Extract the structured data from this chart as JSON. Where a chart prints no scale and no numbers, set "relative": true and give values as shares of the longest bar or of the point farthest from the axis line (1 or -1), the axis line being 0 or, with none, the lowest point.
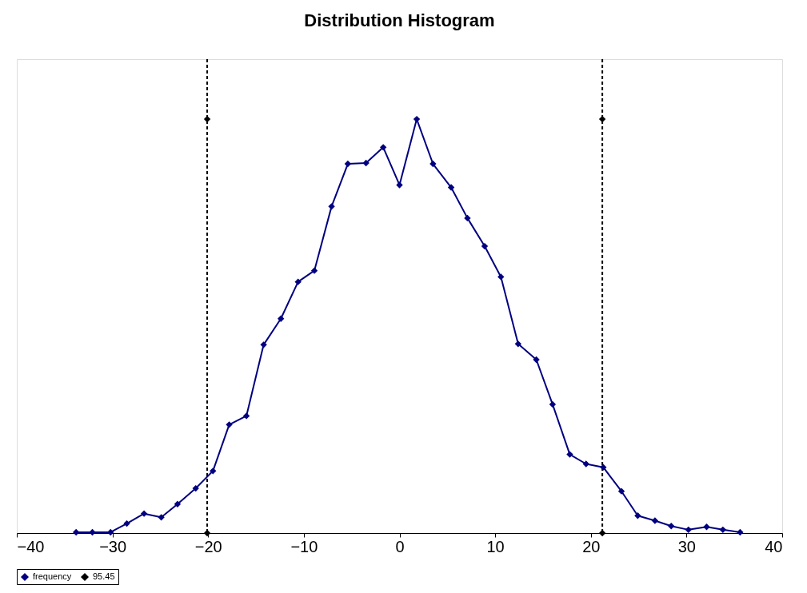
{
  "chart_data": {
    "type": "line",
    "title": "Distribution Histogram",
    "relative": true,
    "xlim": [
      -40,
      40
    ],
    "xticks": [
      -40,
      -30,
      -20,
      -10,
      0,
      10,
      20,
      30,
      40
    ],
    "legend": "bottom",
    "grid": false,
    "marker": "diamond",
    "series": [
      {
        "name": "frequency",
        "color": "#000080",
        "line_style": "solid",
        "x": [
          -33.8,
          -32.1,
          -30.2,
          -28.5,
          -26.7,
          -24.9,
          -23.2,
          -21.3,
          -19.5,
          -17.8,
          -16.0,
          -14.2,
          -12.4,
          -10.6,
          -8.9,
          -7.1,
          -5.4,
          -3.5,
          -1.7,
          0,
          1.8,
          3.5,
          5.4,
          7.1,
          8.9,
          10.6,
          12.4,
          14.3,
          16.0,
          17.8,
          19.5,
          21.3,
          23.2,
          24.9,
          26.7,
          28.4,
          30.2,
          32.1,
          33.8,
          35.6
        ],
        "values": [
          0.002,
          0.002,
          0.002,
          0.023,
          0.047,
          0.038,
          0.07,
          0.108,
          0.15,
          0.262,
          0.283,
          0.455,
          0.518,
          0.607,
          0.634,
          0.789,
          0.892,
          0.894,
          0.932,
          0.841,
          1,
          0.892,
          0.835,
          0.761,
          0.693,
          0.619,
          0.457,
          0.419,
          0.311,
          0.19,
          0.167,
          0.159,
          0.101,
          0.042,
          0.03,
          0.017,
          0.008,
          0.015,
          0.008,
          0.002
        ]
      },
      {
        "name": "95.45",
        "type": "scatter",
        "color": "#000000",
        "x": [
          -20.1,
          -20.1,
          21.2,
          21.2
        ],
        "values": [
          0,
          1,
          0,
          1
        ]
      }
    ],
    "ref_lines": [
      {
        "axis": "x",
        "value": -20.1,
        "color": "#000000",
        "line_style": "dashed"
      },
      {
        "axis": "x",
        "value": 21.2,
        "color": "#000000",
        "line_style": "dashed"
      }
    ]
  }
}
